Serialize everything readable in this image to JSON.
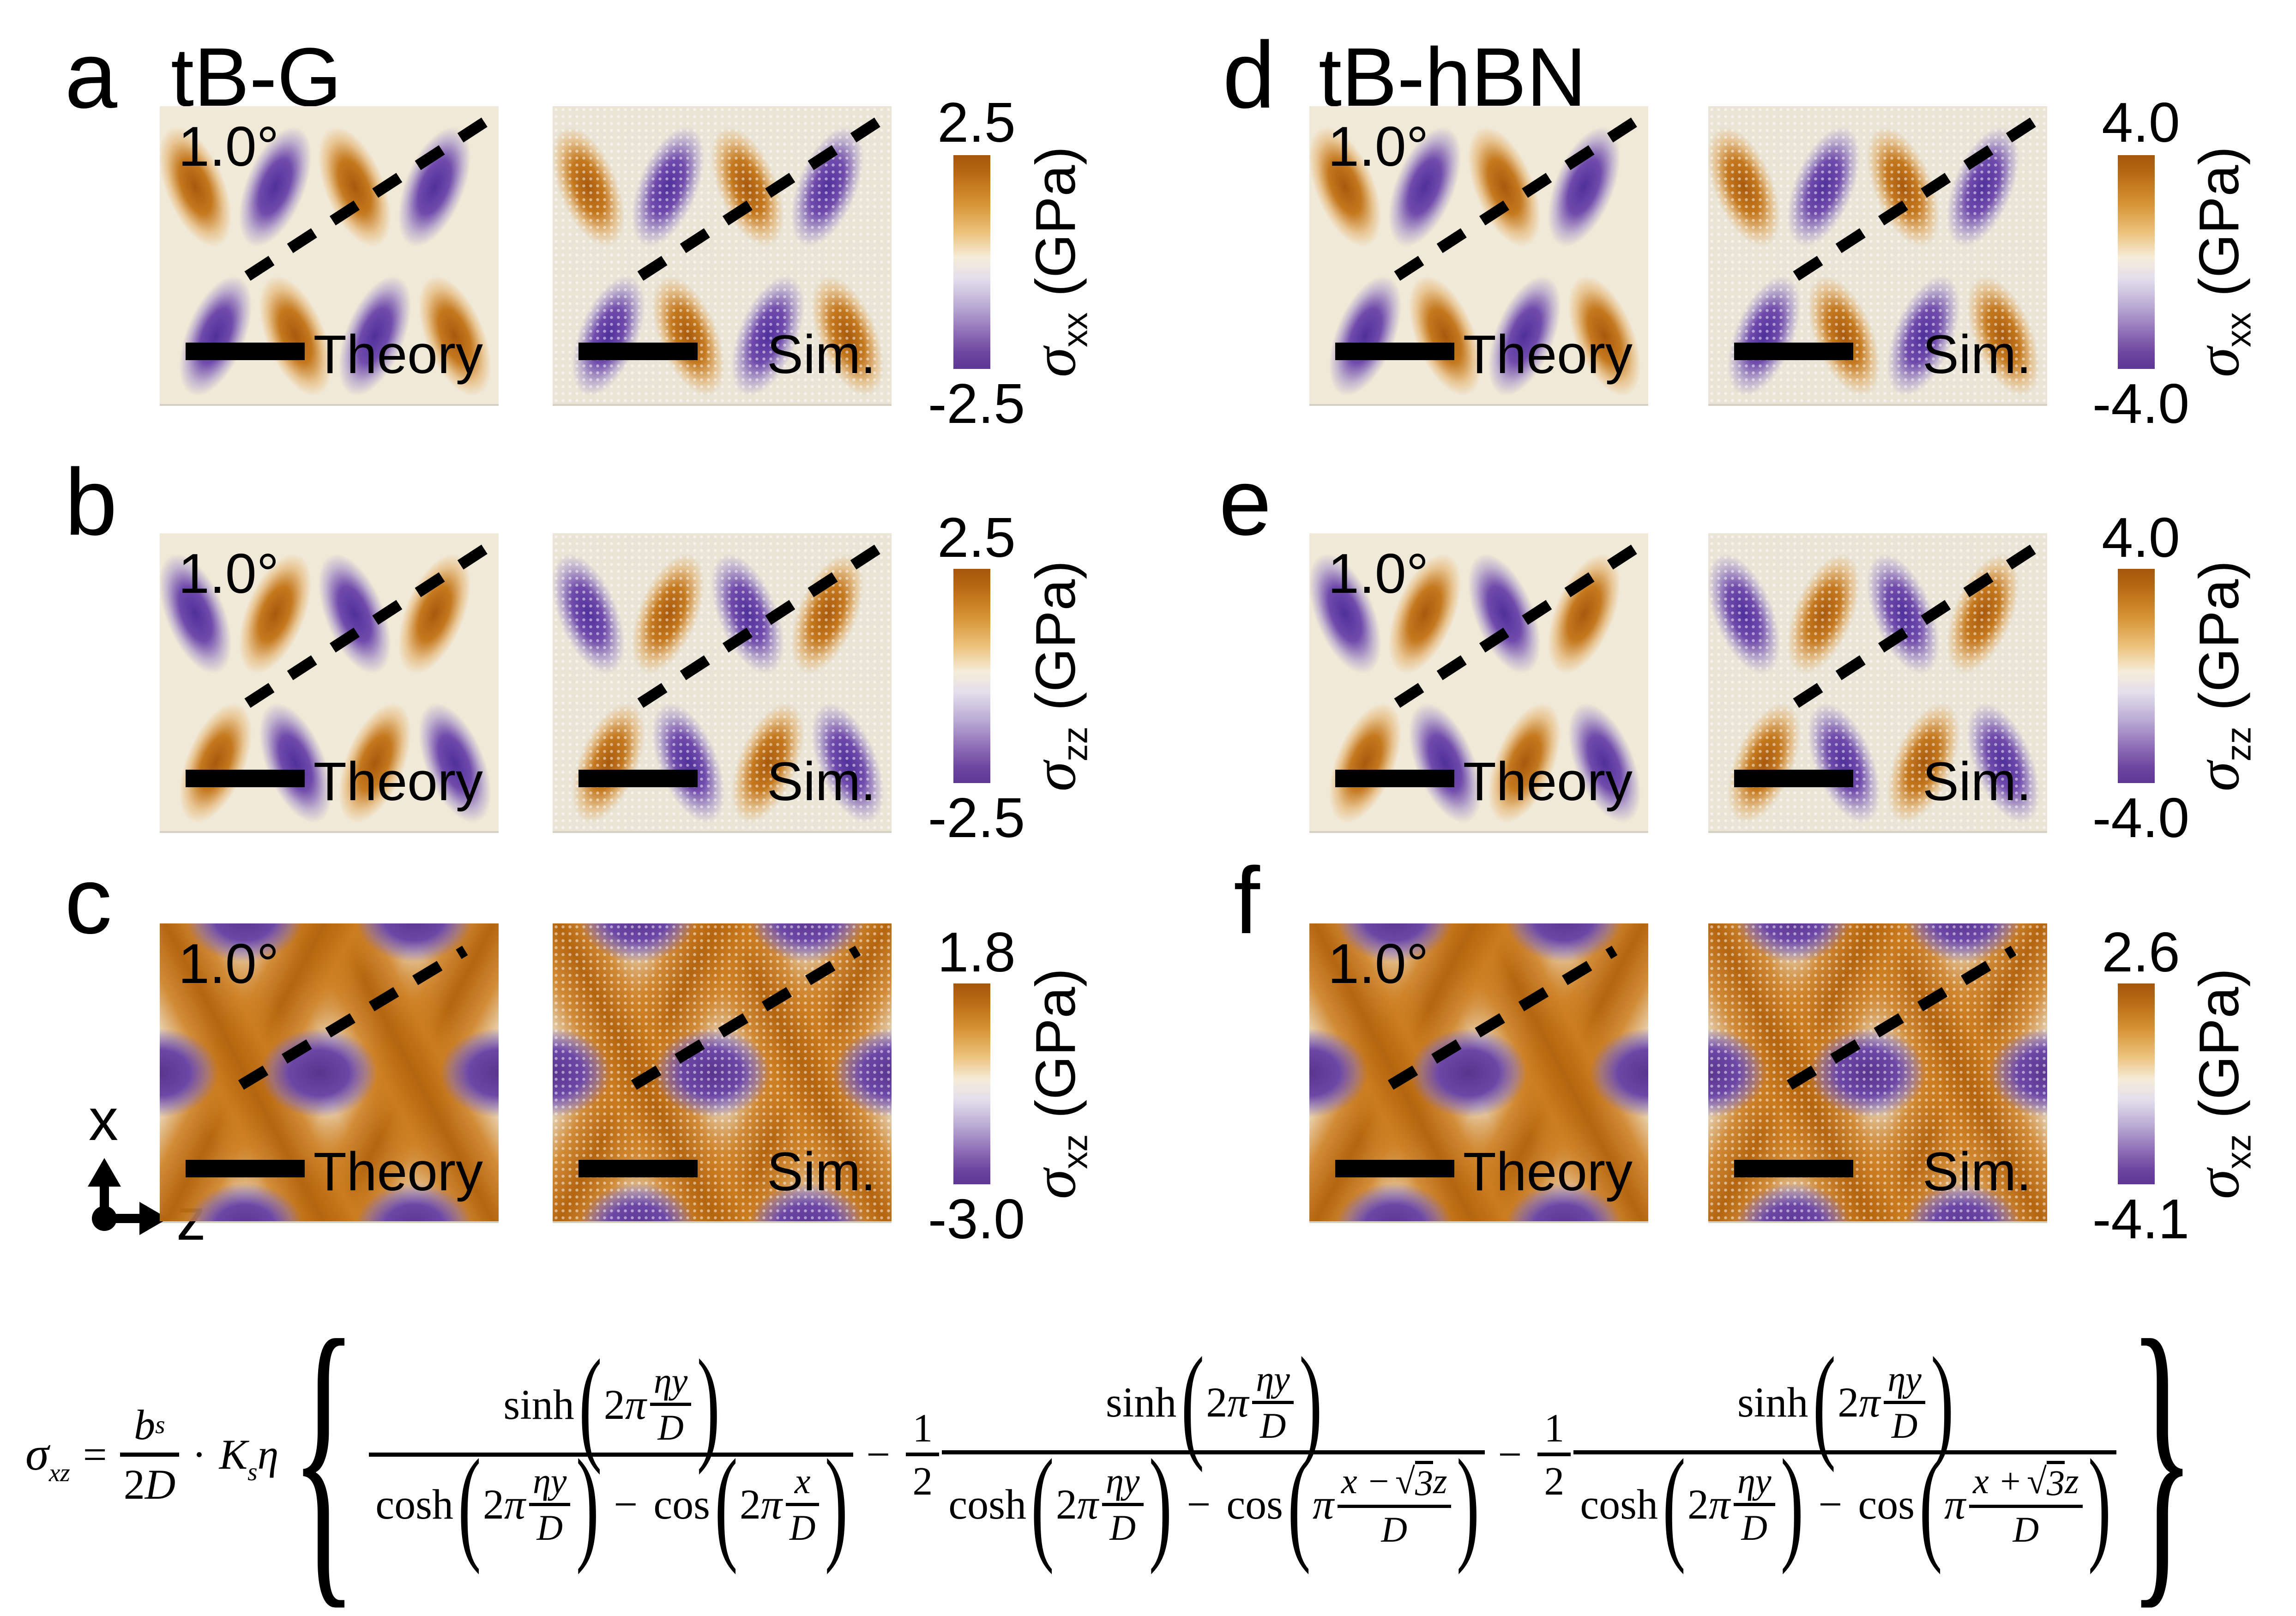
{
  "panels": [
    {
      "row_label": "a",
      "title": "tB-G",
      "angle": "1.0°",
      "theory_label": "Theory",
      "sim_label": "Sim.",
      "cb_max": "2.5",
      "cb_min": "-2.5",
      "sigma": "σ",
      "sigma_sub": "xx",
      "unit": "(GPa)"
    },
    {
      "row_label": "b",
      "angle": "1.0°",
      "theory_label": "Theory",
      "sim_label": "Sim.",
      "cb_max": "2.5",
      "cb_min": "-2.5",
      "sigma": "σ",
      "sigma_sub": "zz",
      "unit": "(GPa)"
    },
    {
      "row_label": "c",
      "angle": "1.0°",
      "theory_label": "Theory",
      "sim_label": "Sim.",
      "cb_max": "1.8",
      "cb_min": "-3.0",
      "sigma": "σ",
      "sigma_sub": "xz",
      "unit": "(GPa)"
    },
    {
      "row_label": "d",
      "title": "tB-hBN",
      "angle": "1.0°",
      "theory_label": "Theory",
      "sim_label": "Sim.",
      "cb_max": "4.0",
      "cb_min": "-4.0",
      "sigma": "σ",
      "sigma_sub": "xx",
      "unit": "(GPa)"
    },
    {
      "row_label": "e",
      "angle": "1.0°",
      "theory_label": "Theory",
      "sim_label": "Sim.",
      "cb_max": "4.0",
      "cb_min": "-4.0",
      "sigma": "σ",
      "sigma_sub": "zz",
      "unit": "(GPa)"
    },
    {
      "row_label": "f",
      "angle": "1.0°",
      "theory_label": "Theory",
      "sim_label": "Sim.",
      "cb_max": "2.6",
      "cb_min": "-4.1",
      "sigma": "σ",
      "sigma_sub": "xz",
      "unit": "(GPa)"
    }
  ],
  "axis_indicator": {
    "x_label": "x",
    "z_label": "z"
  },
  "colors": {
    "positive_orange": "#b4610f",
    "negative_purple": "#5e3695",
    "map_background": "#f1e9d7"
  },
  "chart_data": [
    {
      "type": "heatmap",
      "panel": "a",
      "system": "tB-G",
      "quantity": "sigma_xx (GPa)",
      "twist_angle_deg": 1.0,
      "zlim": [
        -2.5,
        2.5
      ],
      "views": [
        "Theory",
        "Sim."
      ],
      "colormap": "purple-white-orange"
    },
    {
      "type": "heatmap",
      "panel": "b",
      "system": "tB-G",
      "quantity": "sigma_zz (GPa)",
      "twist_angle_deg": 1.0,
      "zlim": [
        -2.5,
        2.5
      ],
      "views": [
        "Theory",
        "Sim."
      ],
      "colormap": "purple-white-orange"
    },
    {
      "type": "heatmap",
      "panel": "c",
      "system": "tB-G",
      "quantity": "sigma_xz (GPa)",
      "twist_angle_deg": 1.0,
      "zlim": [
        -3.0,
        1.8
      ],
      "views": [
        "Theory",
        "Sim."
      ],
      "colormap": "purple-white-orange"
    },
    {
      "type": "heatmap",
      "panel": "d",
      "system": "tB-hBN",
      "quantity": "sigma_xx (GPa)",
      "twist_angle_deg": 1.0,
      "zlim": [
        -4.0,
        4.0
      ],
      "views": [
        "Theory",
        "Sim."
      ],
      "colormap": "purple-white-orange"
    },
    {
      "type": "heatmap",
      "panel": "e",
      "system": "tB-hBN",
      "quantity": "sigma_zz (GPa)",
      "twist_angle_deg": 1.0,
      "zlim": [
        -4.0,
        4.0
      ],
      "views": [
        "Theory",
        "Sim."
      ],
      "colormap": "purple-white-orange"
    },
    {
      "type": "heatmap",
      "panel": "f",
      "system": "tB-hBN",
      "quantity": "sigma_xz (GPa)",
      "twist_angle_deg": 1.0,
      "zlim": [
        -4.1,
        2.6
      ],
      "views": [
        "Theory",
        "Sim."
      ],
      "colormap": "purple-white-orange"
    }
  ],
  "equation": {
    "sigma": "σ",
    "sigma_sub": "xz",
    "equals": "=",
    "b": "b",
    "b_sub": "s",
    "two": "2",
    "cap_d": "D",
    "cdot": "·",
    "cap_k": "K",
    "k_sub": "s",
    "eta": "η",
    "lbrace": "{",
    "rbrace": "}",
    "sinh": "sinh",
    "cosh": "cosh",
    "cos": "cos",
    "pi": "π",
    "eta_y": "ηy",
    "x": "x",
    "minus": "−",
    "one": "1",
    "radical": "√",
    "three": "3",
    "z": "z",
    "x_minus": "x −",
    "x_plus": "x +",
    "lparen": "(",
    "rparen": ")"
  }
}
